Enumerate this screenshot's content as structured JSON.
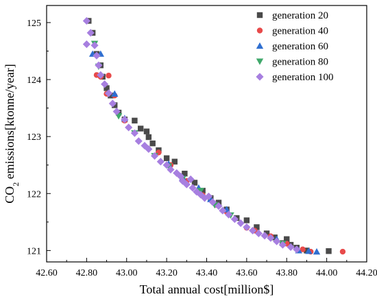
{
  "chart_data": {
    "type": "scatter",
    "title": "",
    "xlabel": "Total annual cost[million$]",
    "ylabel_prefix": "CO",
    "ylabel_sub": "2",
    "ylabel_suffix": " emissions[ktonne/year]",
    "xlim": [
      42.6,
      44.2
    ],
    "ylim": [
      120.8,
      125.3
    ],
    "xticks": [
      "42.60",
      "42.80",
      "43.00",
      "43.20",
      "43.40",
      "43.60",
      "43.80",
      "44.00",
      "44.20"
    ],
    "yticks": [
      "121",
      "122",
      "123",
      "124",
      "125"
    ],
    "xtick_values": [
      42.6,
      42.8,
      43.0,
      43.2,
      43.4,
      43.6,
      43.8,
      44.0,
      44.2
    ],
    "ytick_values": [
      121,
      122,
      123,
      124,
      125
    ],
    "grid": false,
    "legend_position": "top-right",
    "series": [
      {
        "name": "generation 20",
        "marker": "square",
        "color": "#4a4a4a",
        "points": [
          [
            42.81,
            125.03
          ],
          [
            42.83,
            124.82
          ],
          [
            42.85,
            124.45
          ],
          [
            42.87,
            124.25
          ],
          [
            42.88,
            124.05
          ],
          [
            42.9,
            123.85
          ],
          [
            42.92,
            123.72
          ],
          [
            42.94,
            123.55
          ],
          [
            42.96,
            123.42
          ],
          [
            42.99,
            123.3
          ],
          [
            43.04,
            123.28
          ],
          [
            43.07,
            123.14
          ],
          [
            43.1,
            123.09
          ],
          [
            43.11,
            122.99
          ],
          [
            43.13,
            122.88
          ],
          [
            43.16,
            122.76
          ],
          [
            43.2,
            122.62
          ],
          [
            43.24,
            122.56
          ],
          [
            43.29,
            122.35
          ],
          [
            43.34,
            122.19
          ],
          [
            43.38,
            122.05
          ],
          [
            43.42,
            121.92
          ],
          [
            43.46,
            121.84
          ],
          [
            43.5,
            121.72
          ],
          [
            43.55,
            121.57
          ],
          [
            43.6,
            121.53
          ],
          [
            43.65,
            121.41
          ],
          [
            43.7,
            121.3
          ],
          [
            43.74,
            121.23
          ],
          [
            43.78,
            121.13
          ],
          [
            43.8,
            121.2
          ],
          [
            43.82,
            121.1
          ],
          [
            43.85,
            121.05
          ],
          [
            43.9,
            121.0
          ],
          [
            44.01,
            120.99
          ]
        ]
      },
      {
        "name": "generation 40",
        "marker": "circle",
        "color": "#e84a4a",
        "points": [
          [
            42.85,
            124.08
          ],
          [
            42.87,
            124.05
          ],
          [
            42.9,
            123.75
          ],
          [
            42.91,
            124.07
          ],
          [
            42.94,
            123.72
          ],
          [
            42.99,
            123.28
          ],
          [
            43.16,
            122.72
          ],
          [
            43.22,
            122.5
          ],
          [
            43.3,
            122.22
          ],
          [
            43.38,
            121.97
          ],
          [
            43.45,
            121.8
          ],
          [
            43.5,
            121.68
          ],
          [
            43.6,
            121.4
          ],
          [
            43.64,
            121.35
          ],
          [
            43.72,
            121.25
          ],
          [
            43.8,
            121.12
          ],
          [
            43.88,
            121.02
          ],
          [
            43.92,
            120.98
          ],
          [
            44.08,
            120.98
          ]
        ]
      },
      {
        "name": "generation 60",
        "marker": "triangle-up",
        "color": "#2f6fd0",
        "points": [
          [
            42.83,
            124.45
          ],
          [
            42.87,
            124.45
          ],
          [
            42.94,
            123.75
          ],
          [
            42.99,
            123.32
          ],
          [
            43.21,
            122.52
          ],
          [
            43.28,
            122.28
          ],
          [
            43.36,
            122.1
          ],
          [
            43.42,
            121.9
          ],
          [
            43.5,
            121.72
          ],
          [
            43.75,
            121.2
          ],
          [
            43.86,
            121.0
          ],
          [
            43.91,
            120.99
          ],
          [
            43.95,
            120.98
          ]
        ]
      },
      {
        "name": "generation 80",
        "marker": "triangle-down",
        "color": "#3fa86a",
        "points": [
          [
            42.84,
            124.63
          ],
          [
            42.86,
            124.23
          ],
          [
            42.96,
            123.36
          ],
          [
            43.04,
            123.06
          ],
          [
            43.14,
            122.66
          ],
          [
            43.21,
            122.48
          ],
          [
            43.28,
            122.26
          ],
          [
            43.37,
            122.05
          ],
          [
            43.44,
            121.8
          ],
          [
            43.52,
            121.62
          ],
          [
            43.78,
            121.12
          ]
        ]
      },
      {
        "name": "generation 100",
        "marker": "diamond",
        "color": "#a77fe0",
        "points": [
          [
            42.8,
            125.03
          ],
          [
            42.82,
            124.82
          ],
          [
            42.8,
            124.62
          ],
          [
            42.84,
            124.6
          ],
          [
            42.85,
            124.42
          ],
          [
            42.86,
            124.25
          ],
          [
            42.87,
            124.08
          ],
          [
            42.89,
            123.92
          ],
          [
            42.91,
            123.76
          ],
          [
            42.93,
            123.58
          ],
          [
            42.95,
            123.44
          ],
          [
            42.99,
            123.3
          ],
          [
            43.01,
            123.16
          ],
          [
            43.04,
            123.06
          ],
          [
            43.06,
            122.92
          ],
          [
            43.09,
            122.84
          ],
          [
            43.11,
            122.78
          ],
          [
            43.14,
            122.66
          ],
          [
            43.17,
            122.56
          ],
          [
            43.2,
            122.5
          ],
          [
            43.22,
            122.42
          ],
          [
            43.25,
            122.36
          ],
          [
            43.27,
            122.3
          ],
          [
            43.28,
            122.22
          ],
          [
            43.3,
            122.16
          ],
          [
            43.32,
            122.25
          ],
          [
            43.33,
            122.1
          ],
          [
            43.35,
            122.03
          ],
          [
            43.37,
            121.98
          ],
          [
            43.39,
            121.92
          ],
          [
            43.41,
            121.95
          ],
          [
            43.43,
            121.85
          ],
          [
            43.46,
            121.78
          ],
          [
            43.48,
            121.7
          ],
          [
            43.51,
            121.63
          ],
          [
            43.54,
            121.55
          ],
          [
            43.57,
            121.48
          ],
          [
            43.6,
            121.41
          ],
          [
            43.63,
            121.35
          ],
          [
            43.66,
            121.3
          ],
          [
            43.69,
            121.26
          ],
          [
            43.72,
            121.22
          ],
          [
            43.75,
            121.16
          ],
          [
            43.78,
            121.1
          ],
          [
            43.82,
            121.06
          ],
          [
            43.85,
            121.02
          ]
        ]
      }
    ]
  }
}
